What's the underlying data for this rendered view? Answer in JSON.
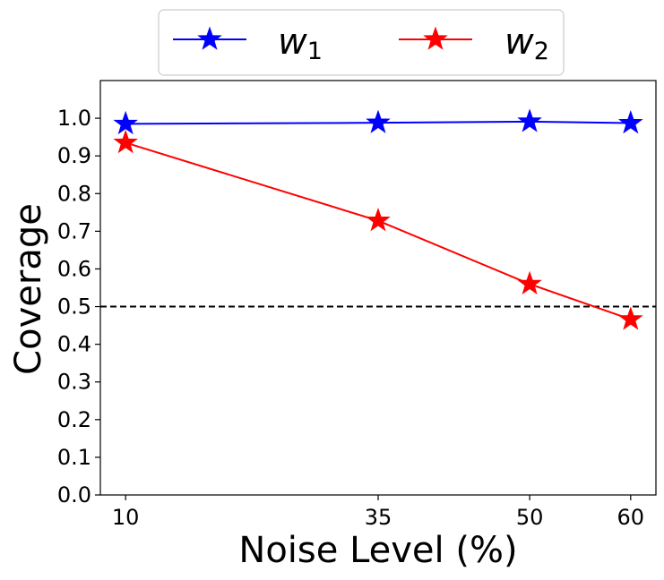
{
  "chart_data": {
    "type": "line",
    "title": "",
    "xlabel": "Noise Level (%)",
    "ylabel": "Coverage",
    "x": [
      10,
      35,
      50,
      60
    ],
    "x_tick_labels": [
      "10",
      "35",
      "50",
      "60"
    ],
    "xlim": [
      7.5,
      62.5
    ],
    "ylim": [
      0.0,
      1.1
    ],
    "y_ticks": [
      0.0,
      0.1,
      0.2,
      0.3,
      0.4,
      0.5,
      0.6,
      0.7,
      0.8,
      0.9,
      1.0
    ],
    "y_tick_labels": [
      "0.0",
      "0.1",
      "0.2",
      "0.3",
      "0.4",
      "0.5",
      "0.6",
      "0.7",
      "0.8",
      "0.9",
      "1.0"
    ],
    "grid": false,
    "legend_position": "top-center, above plot",
    "reference_line": {
      "y": 0.5,
      "style": "dashed",
      "color": "#000000"
    },
    "series": [
      {
        "name": "w",
        "subscript": "1",
        "color": "#0000ff",
        "marker": "star",
        "values": [
          0.985,
          0.988,
          0.991,
          0.987
        ]
      },
      {
        "name": "w",
        "subscript": "2",
        "color": "#ff0000",
        "marker": "star",
        "values": [
          0.935,
          0.728,
          0.56,
          0.466
        ]
      }
    ]
  }
}
